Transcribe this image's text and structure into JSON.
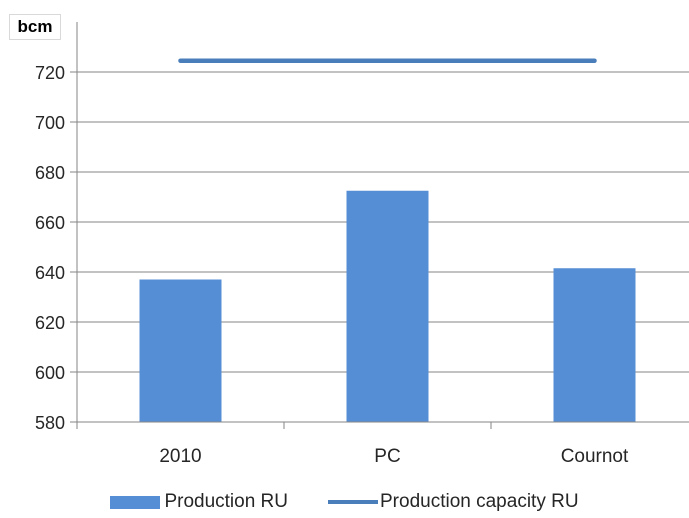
{
  "chart_data": {
    "type": "bar",
    "unit_label": "bcm",
    "categories": [
      "2010",
      "PC",
      "Cournot"
    ],
    "series": [
      {
        "name": "Production RU",
        "kind": "bar",
        "color": "#558ed5",
        "values": [
          637,
          672.5,
          641.5
        ]
      },
      {
        "name": "Production capacity RU",
        "kind": "line",
        "color": "#4a7ebb",
        "values": [
          724.5,
          724.5,
          724.5
        ]
      }
    ],
    "ylim": [
      580,
      740
    ],
    "yticks": [
      580,
      600,
      620,
      640,
      660,
      680,
      700,
      720
    ],
    "grid": true,
    "legend_position": "bottom",
    "title": "",
    "xlabel": "",
    "ylabel": ""
  }
}
